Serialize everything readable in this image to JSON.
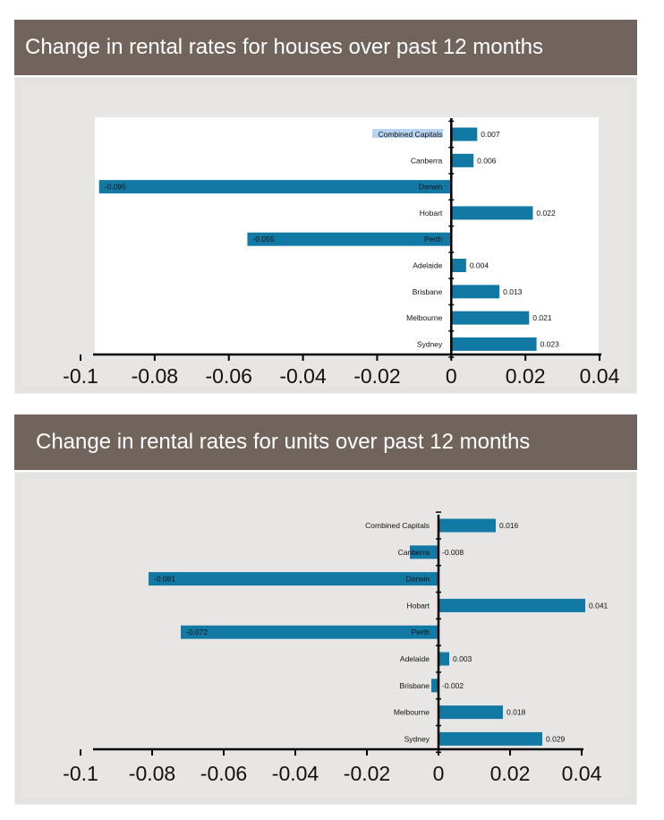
{
  "charts": [
    {
      "header": "Change in rental rates for houses over past 12 months",
      "highlighted_label": "Combined Capitals"
    },
    {
      "header": "Change in rental rates for units over past 12 months"
    }
  ],
  "chart_data": [
    {
      "type": "bar",
      "orientation": "horizontal",
      "title": "Change in rental rates for houses over past 12 months",
      "categories": [
        "Combined Capitals",
        "Canberra",
        "Darwin",
        "Hobart",
        "Perth",
        "Adelaide",
        "Brisbane",
        "Melbourne",
        "Sydney"
      ],
      "values": [
        0.007,
        0.006,
        -0.095,
        0.022,
        -0.055,
        0.004,
        0.013,
        0.021,
        0.023
      ],
      "value_labels": [
        "0.007",
        "0.006",
        "-0.095",
        "0.022",
        "-0.055",
        "0.004",
        "0.013",
        "0.021",
        "0.023"
      ],
      "xlim": [
        -0.1,
        0.04
      ],
      "x_ticks": [
        -0.1,
        -0.08,
        -0.06,
        -0.04,
        -0.02,
        0,
        0.02,
        0.04
      ],
      "x_tick_labels": [
        "-0.1",
        "-0.08",
        "-0.06",
        "-0.04",
        "-0.02",
        "0",
        "0.02",
        "0.04"
      ],
      "grid": false,
      "bar_color": "#1279a5",
      "plot_background": "#ffffff"
    },
    {
      "type": "bar",
      "orientation": "horizontal",
      "title": "Change in rental rates for units over past 12 months",
      "categories": [
        "Combined Capitals",
        "Canberra",
        "Darwin",
        "Hobart",
        "Perth",
        "Adelaide",
        "Brisbane",
        "Melbourne",
        "Sydney"
      ],
      "values": [
        0.016,
        -0.008,
        -0.081,
        0.041,
        -0.072,
        0.003,
        -0.002,
        0.018,
        0.029
      ],
      "value_labels": [
        "0.016",
        "-0.008",
        "-0.081",
        "0.041",
        "-0.072",
        "0.003",
        "-0.002",
        "0.018",
        "0.029"
      ],
      "xlim": [
        -0.1,
        0.04
      ],
      "x_ticks": [
        -0.1,
        -0.08,
        -0.06,
        -0.04,
        -0.02,
        0,
        0.02,
        0.04
      ],
      "x_tick_labels": [
        "-0.1",
        "-0.08",
        "-0.06",
        "-0.04",
        "-0.02",
        "0",
        "0.02",
        "0.04"
      ],
      "grid": false,
      "bar_color": "#1279a5",
      "plot_background": "#e7e6e5"
    }
  ]
}
